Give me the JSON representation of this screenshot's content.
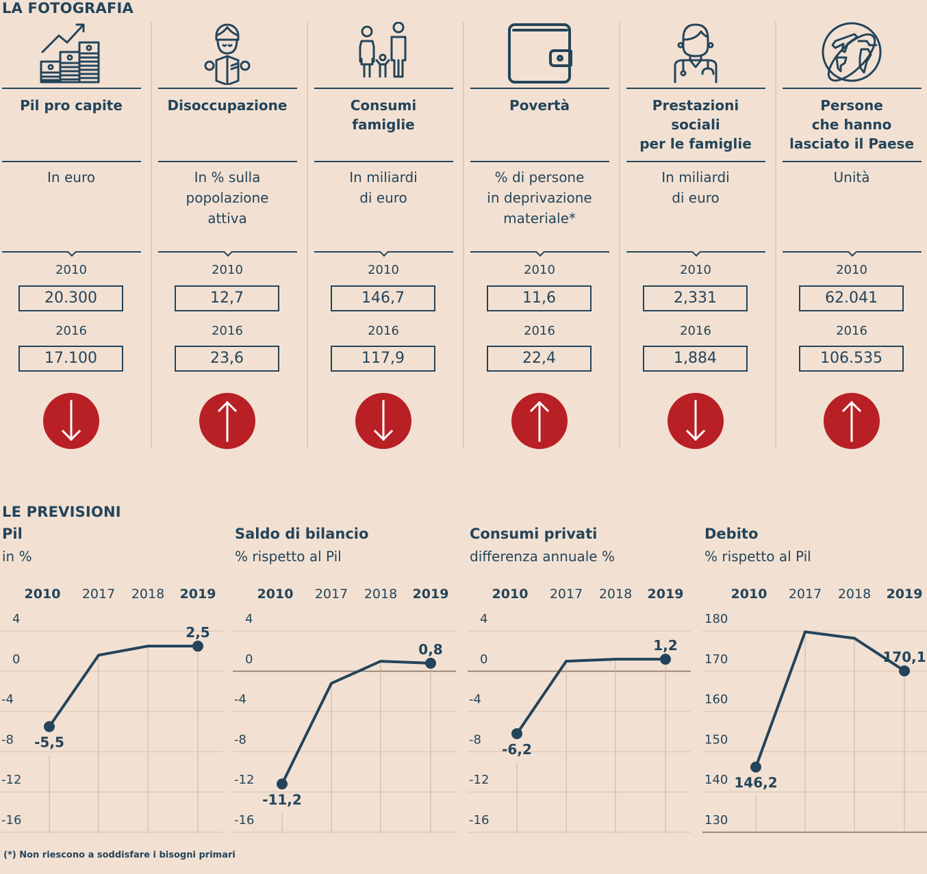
{
  "top": {
    "title": "LA FOTOGRAFIA",
    "year_labels": [
      "2010",
      "2016"
    ],
    "columns": [
      {
        "icon": "money-growth-icon",
        "title": "Pil pro capite",
        "unit": "In euro",
        "v2010": "20.300",
        "v2016": "17.100",
        "trend": "down"
      },
      {
        "icon": "reading-person-icon",
        "title": "Disoccupazione",
        "unit": "In % sulla\npopolazione\nattiva",
        "v2010": "12,7",
        "v2016": "23,6",
        "trend": "up"
      },
      {
        "icon": "family-icon",
        "title": "Consumi\nfamiglie",
        "unit": "In miliardi\ndi euro",
        "v2010": "146,7",
        "v2016": "117,9",
        "trend": "down"
      },
      {
        "icon": "wallet-icon",
        "title": "Povertà",
        "unit": "% di persone\nin deprivazione\nmateriale*",
        "v2010": "11,6",
        "v2016": "22,4",
        "trend": "up"
      },
      {
        "icon": "doctor-icon",
        "title": "Prestazioni\nsociali\nper le famiglie",
        "unit": "In miliardi\ndi euro",
        "v2010": "2,331",
        "v2016": "1,884",
        "trend": "down"
      },
      {
        "icon": "globe-plane-icon",
        "title": "Persone\nche hanno\nlasciato il Paese",
        "unit": "Unità",
        "v2010": "62.041",
        "v2016": "106.535",
        "trend": "up"
      }
    ]
  },
  "bottom": {
    "title": "LE PREVISIONI"
  },
  "colors": {
    "background": "#f2e1d3",
    "ink": "#23445a",
    "accent_red": "#b82025",
    "grid": "#ddcbbb",
    "zero_line": "#9e8877"
  },
  "chart_data": [
    {
      "type": "line",
      "title": "Pil",
      "subtitle": "in %",
      "categories": [
        "2010",
        "2017",
        "2018",
        "2019"
      ],
      "bold_categories": [
        "2010",
        "2019"
      ],
      "values": [
        -5.5,
        1.6,
        2.5,
        2.5
      ],
      "labels": {
        "0": "-5,5",
        "3": "2,5"
      },
      "label_pos": {
        "0": "below",
        "3": "above"
      },
      "yticks": [
        4,
        0,
        -4,
        -8,
        -12,
        -16
      ],
      "ylim": [
        -16,
        4
      ],
      "zero_line": false,
      "grid": true
    },
    {
      "type": "line",
      "title": "Saldo di bilancio",
      "subtitle": "% rispetto al Pil",
      "categories": [
        "2010",
        "2017",
        "2018",
        "2019"
      ],
      "bold_categories": [
        "2010",
        "2019"
      ],
      "values": [
        -11.2,
        -1.2,
        1.0,
        0.8
      ],
      "labels": {
        "0": "-11,2",
        "3": "0,8"
      },
      "label_pos": {
        "0": "below",
        "3": "above"
      },
      "yticks": [
        4,
        0,
        -4,
        -8,
        -12,
        -16
      ],
      "ylim": [
        -16,
        4
      ],
      "zero_line": true,
      "grid": true
    },
    {
      "type": "line",
      "title": "Consumi privati",
      "subtitle": "differenza annuale %",
      "categories": [
        "2010",
        "2017",
        "2018",
        "2019"
      ],
      "bold_categories": [
        "2010",
        "2019"
      ],
      "values": [
        -6.2,
        1.0,
        1.2,
        1.2
      ],
      "labels": {
        "0": "-6,2",
        "3": "1,2"
      },
      "label_pos": {
        "0": "below",
        "3": "above"
      },
      "yticks": [
        4,
        0,
        -4,
        -8,
        -12,
        -16
      ],
      "ylim": [
        -16,
        4
      ],
      "zero_line": true,
      "grid": true
    },
    {
      "type": "line",
      "title": "Debito",
      "subtitle": "% rispetto al Pil",
      "categories": [
        "2010",
        "2017",
        "2018",
        "2019"
      ],
      "bold_categories": [
        "2010",
        "2019"
      ],
      "values": [
        146.2,
        179.8,
        178.2,
        170.1
      ],
      "labels": {
        "0": "146,2",
        "3": "170,1"
      },
      "label_pos": {
        "0": "below",
        "3": "above"
      },
      "yticks": [
        180,
        170,
        160,
        150,
        140,
        130
      ],
      "ylim": [
        130,
        180
      ],
      "zero_line": false,
      "grid": true
    }
  ],
  "footnote": "(*) Non riescono a soddisfare i bisogni primari"
}
